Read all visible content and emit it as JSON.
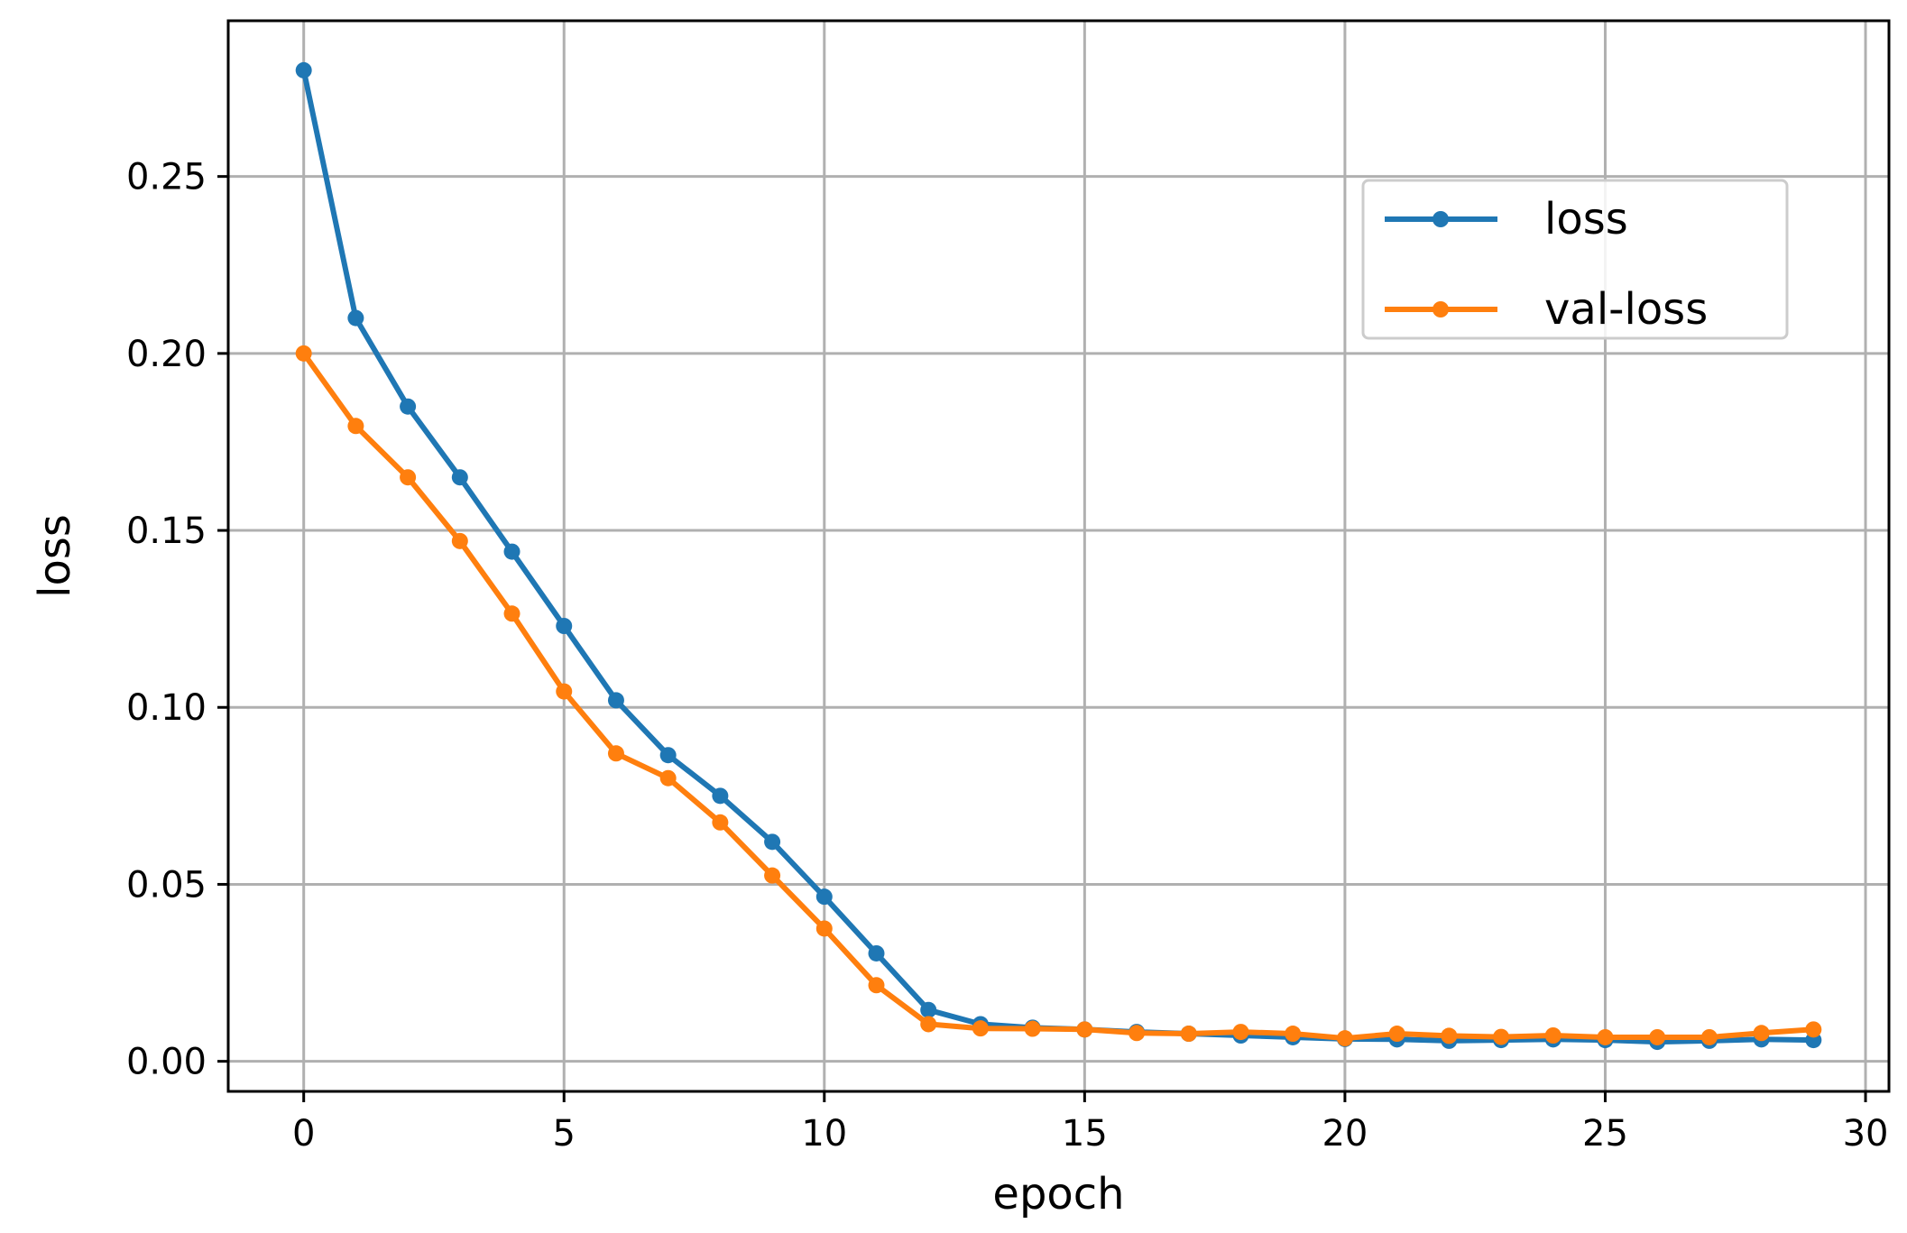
{
  "chart_data": {
    "type": "line",
    "xlabel": "epoch",
    "ylabel": "loss",
    "xlim": [
      -1.45,
      30.45
    ],
    "ylim": [
      -0.0085,
      0.294
    ],
    "xticks": [
      0,
      5,
      10,
      15,
      20,
      25,
      30
    ],
    "yticks": [
      0.0,
      0.05,
      0.1,
      0.15,
      0.2,
      0.25
    ],
    "xtick_labels": [
      "0",
      "5",
      "10",
      "15",
      "20",
      "25",
      "30"
    ],
    "ytick_labels": [
      "0.00",
      "0.05",
      "0.10",
      "0.15",
      "0.20",
      "0.25"
    ],
    "grid": true,
    "legend_position": "upper-right",
    "x": [
      0,
      1,
      2,
      3,
      4,
      5,
      6,
      7,
      8,
      9,
      10,
      11,
      12,
      13,
      14,
      15,
      16,
      17,
      18,
      19,
      20,
      21,
      22,
      23,
      24,
      25,
      26,
      27,
      28,
      29
    ],
    "series": [
      {
        "name": "loss",
        "color": "#1f77b4",
        "values": [
          0.28,
          0.21,
          0.185,
          0.165,
          0.144,
          0.123,
          0.102,
          0.0865,
          0.075,
          0.062,
          0.0465,
          0.0305,
          0.0145,
          0.0105,
          0.0095,
          0.009,
          0.0083,
          0.0078,
          0.0073,
          0.0068,
          0.0063,
          0.0062,
          0.0058,
          0.006,
          0.0062,
          0.006,
          0.0055,
          0.0058,
          0.0062,
          0.006
        ]
      },
      {
        "name": "val-loss",
        "color": "#ff7f0e",
        "values": [
          0.2,
          0.1795,
          0.165,
          0.147,
          0.1265,
          0.1045,
          0.087,
          0.08,
          0.0675,
          0.0525,
          0.0375,
          0.0215,
          0.0105,
          0.0093,
          0.0092,
          0.009,
          0.008,
          0.0078,
          0.0083,
          0.0078,
          0.0065,
          0.0078,
          0.0072,
          0.0069,
          0.0073,
          0.0068,
          0.0068,
          0.0068,
          0.008,
          0.009
        ]
      }
    ]
  }
}
